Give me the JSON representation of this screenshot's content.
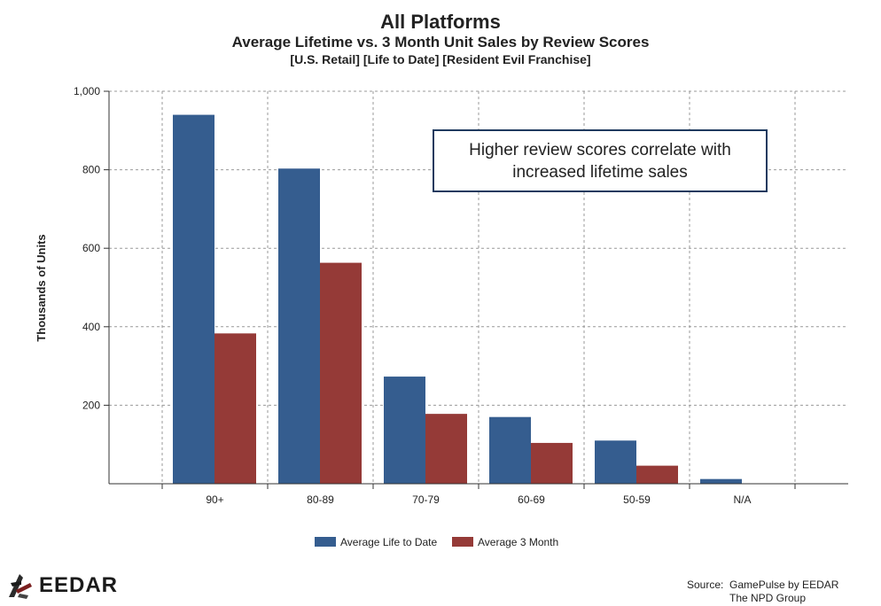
{
  "chart_data": {
    "type": "bar",
    "title": "All Platforms",
    "subtitle": "Average Lifetime vs. 3 Month Unit Sales by Review Scores",
    "subtitle2": "[U.S. Retail] [Life to Date] [Resident Evil Franchise]",
    "xlabel": "",
    "ylabel": "Thousands of Units",
    "ylim": [
      0,
      1000
    ],
    "yticks": [
      "1,000",
      "800",
      "600",
      "400",
      "200"
    ],
    "ytick_values": [
      1000,
      800,
      600,
      400,
      200
    ],
    "categories": [
      "90+",
      "80-89",
      "70-79",
      "60-69",
      "50-59",
      "N/A"
    ],
    "series": [
      {
        "name": "Average Life to Date",
        "color": "#355d8f",
        "values": [
          940,
          803,
          273,
          170,
          110,
          12
        ]
      },
      {
        "name": "Average 3 Month",
        "color": "#953a37",
        "values": [
          383,
          563,
          178,
          104,
          46,
          0
        ]
      }
    ],
    "grid": true,
    "legend_position": "bottom",
    "annotation": {
      "line1": "Higher review scores correlate with",
      "line2": "increased lifetime sales"
    }
  },
  "logo": {
    "text": "EEDAR"
  },
  "source": {
    "line1": "Source:  GamePulse by EEDAR",
    "line2": "The NPD Group"
  }
}
